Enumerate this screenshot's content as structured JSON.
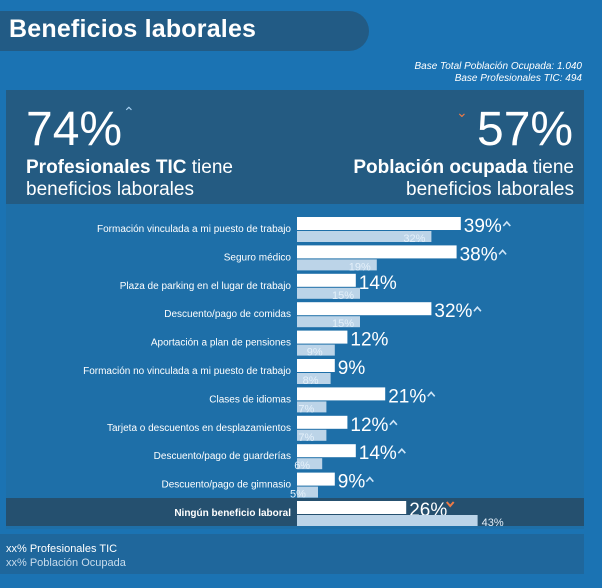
{
  "header": {
    "title": "Beneficios laborales"
  },
  "base_notes": [
    "Base Total Población Ocupada: 1.040",
    "Base Profesionales TIC: 494"
  ],
  "summary": {
    "left": {
      "pct": "74%",
      "bold": "Profesionales TIC",
      "rest1": " tiene",
      "line2": "beneficios laborales"
    },
    "right": {
      "pct": "57%",
      "bold": "Población ocupada",
      "rest1": " tiene",
      "line2": "beneficios laborales"
    }
  },
  "colors": {
    "primary_bar": "#ffffff",
    "secondary_bar": "#bcd4e8",
    "up_chevron": "#cfe5f7",
    "down_chevron": "#ee7a45"
  },
  "chart_data": {
    "type": "bar",
    "orientation": "horizontal",
    "categories": [
      "Formación vinculada a mi puesto de trabajo",
      "Seguro médico",
      "Plaza de parking en el lugar de trabajo",
      "Descuento/pago de comidas",
      "Aportación a plan de pensiones",
      "Formación no vinculada a mi puesto de trabajo",
      "Clases de idiomas",
      "Tarjeta o descuentos en desplazamientos",
      "Descuento/pago de guarderías",
      "Descuento/pago de gimnasio",
      "Ningún beneficio laboral"
    ],
    "series": [
      {
        "name": "Profesionales TIC",
        "values": [
          39,
          38,
          14,
          32,
          12,
          9,
          21,
          12,
          14,
          9,
          26
        ],
        "labels": [
          "39%",
          "38%",
          "14%",
          "32%",
          "12%",
          "9%",
          "21%",
          "12%",
          "14%",
          "9%",
          "26%"
        ]
      },
      {
        "name": "Población Ocupada",
        "values": [
          32,
          19,
          15,
          15,
          9,
          8,
          7,
          7,
          6,
          5,
          43
        ],
        "labels": [
          "32%",
          "19%",
          "15%",
          "15%",
          "9%",
          "8%",
          "7%",
          "7%",
          "6%",
          "5%",
          "43%"
        ]
      }
    ],
    "trend": [
      "up",
      "up",
      "none",
      "up",
      "none",
      "none",
      "up",
      "up",
      "up",
      "up",
      "down"
    ],
    "highlight_last": true
  },
  "legend": {
    "primary": "xx%  Profesionales TIC",
    "secondary": "xx% Población Ocupada"
  }
}
